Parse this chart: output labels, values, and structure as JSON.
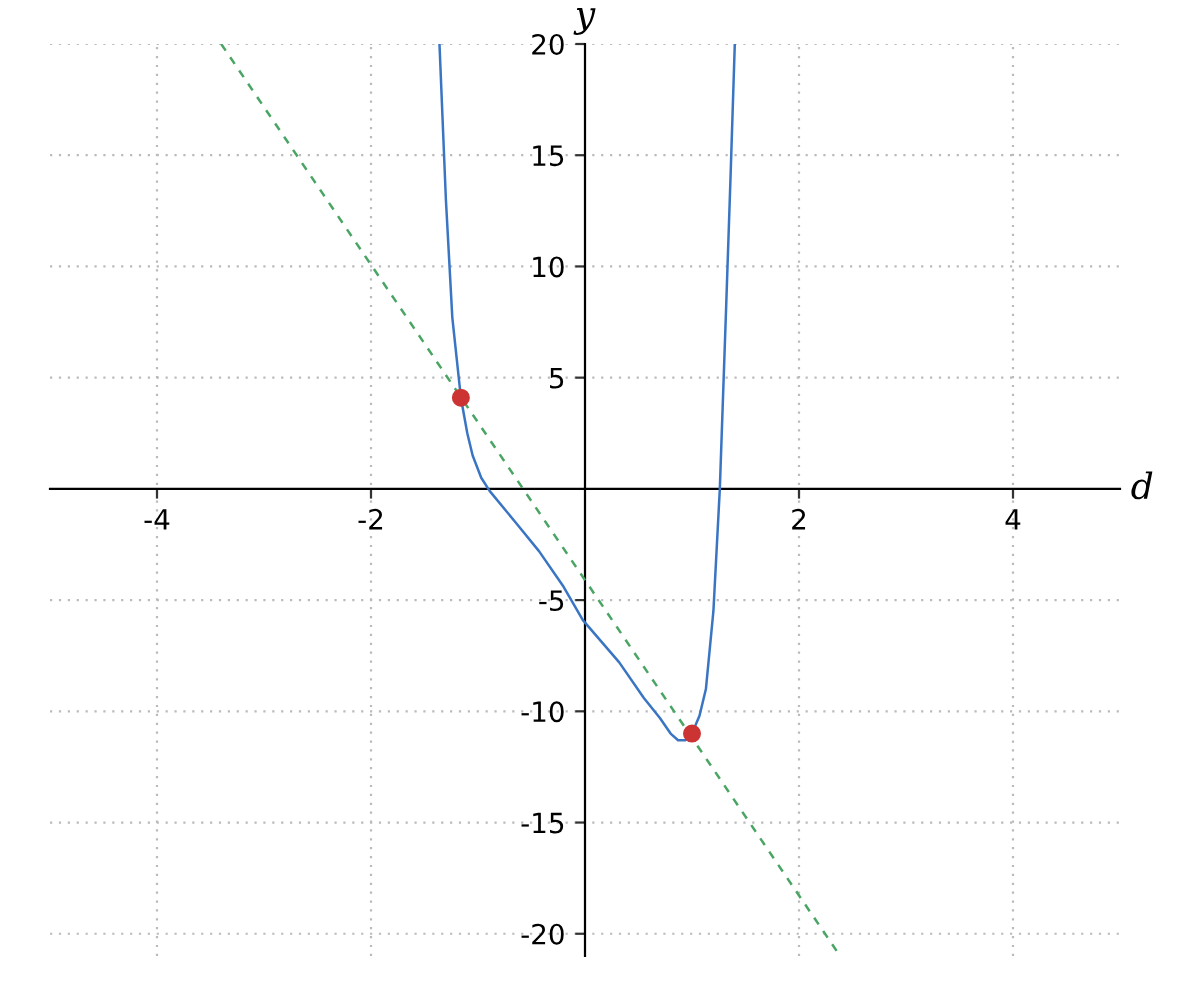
{
  "chart_data": {
    "type": "line",
    "xlabel": "d",
    "ylabel": "y",
    "xlim": [
      -5,
      5
    ],
    "ylim": [
      -21,
      20
    ],
    "xticks": [
      -4,
      -2,
      2,
      4
    ],
    "yticks": [
      -20,
      -15,
      -10,
      -5,
      5,
      10,
      15,
      20
    ],
    "grid": true,
    "series": [
      {
        "color": "#3a75c4",
        "line_style": "solid",
        "x": [
          -1.36,
          -1.3,
          -1.24,
          -1.16,
          -1.1,
          -1.05,
          -0.97,
          -0.89,
          -0.65,
          -0.43,
          -0.2,
          -0.02,
          0.32,
          0.55,
          0.7,
          0.8,
          0.87,
          0.94,
          1.0,
          1.07,
          1.13,
          1.2,
          1.26,
          1.32,
          1.36,
          1.4
        ],
        "values": [
          20,
          13.0,
          7.7,
          4.1,
          2.5,
          1.5,
          0.5,
          -0.1,
          -1.5,
          -2.8,
          -4.4,
          -5.9,
          -7.8,
          -9.4,
          -10.3,
          -11.0,
          -11.3,
          -11.3,
          -11.0,
          -10.2,
          -9.0,
          -5.5,
          0,
          8.3,
          14,
          20
        ]
      },
      {
        "type": "line",
        "color": "#4aa564",
        "line_style": "dashed",
        "x": [
          -3.4,
          2.37
        ],
        "values": [
          20,
          -20.9
        ]
      },
      {
        "type": "scatter",
        "color": "#cc3333",
        "marker": "circle",
        "x": [
          -1.16,
          1.0
        ],
        "values": [
          4.1,
          -11.0
        ]
      }
    ]
  }
}
